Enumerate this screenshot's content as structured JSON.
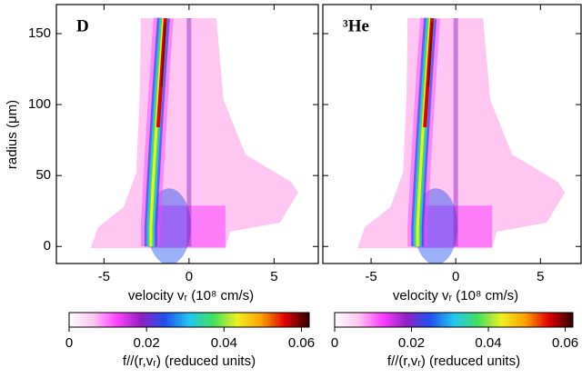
{
  "chart_data": [
    {
      "type": "heatmap",
      "title": "D",
      "xlabel": "velocity vᵣ (10⁸ cm/s)",
      "ylabel": "radius (μm)",
      "xlim": [
        -7.8,
        7.6
      ],
      "xticks": [
        -5,
        0,
        5
      ],
      "ylim": [
        -12,
        170.5
      ],
      "yticks": [
        0,
        50,
        100,
        150
      ],
      "colormap": [
        "#ffffff",
        "#ffc6f2",
        "#ff40ff",
        "#9020c0",
        "#2050f0",
        "#20c8f0",
        "#40e060",
        "#f0f020",
        "#ffa000",
        "#e00000",
        "#300000"
      ],
      "colorbar": {
        "label": "f//(r,vᵣ) (reduced units)",
        "lim": [
          0,
          0.062
        ],
        "ticks": [
          0,
          0.02,
          0.04,
          0.06
        ]
      }
    },
    {
      "type": "heatmap",
      "title": "³He",
      "xlabel": "velocity vᵣ (10⁸ cm/s)",
      "xlim": [
        -7.85,
        7.4
      ],
      "xticks": [
        -5,
        0,
        5
      ],
      "ylim": [
        -12,
        170.5
      ],
      "yticks": [
        0,
        50,
        100,
        150
      ],
      "colormap": [
        "#ffffff",
        "#ffc6f2",
        "#ff40ff",
        "#9020c0",
        "#2050f0",
        "#20c8f0",
        "#40e060",
        "#f0f020",
        "#ffa000",
        "#e00000",
        "#300000"
      ],
      "colorbar": {
        "label": "f//(r,vᵣ) (reduced units)",
        "lim": [
          0,
          0.062
        ],
        "ticks": [
          0,
          0.02,
          0.04,
          0.06
        ]
      }
    }
  ]
}
